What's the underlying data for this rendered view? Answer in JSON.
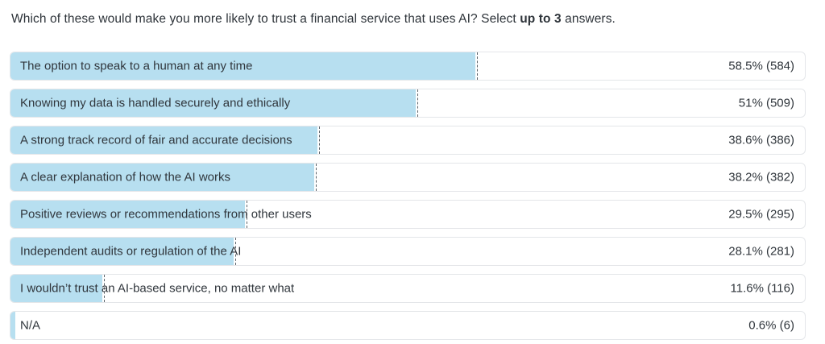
{
  "title": {
    "prefix": "Which of these would make you more likely to trust a financial service that uses AI? Select ",
    "bold_part": "up to 3",
    "suffix": " answers."
  },
  "colors": {
    "bar_fill": "#b7dff0",
    "row_border": "#e4e6e9",
    "dash_line": "#5c636a",
    "text": "#30363c"
  },
  "answers": [
    {
      "label": "The option to speak to a human at any time",
      "pct": 58.5,
      "count": 584,
      "value_label": "58.5% (584)"
    },
    {
      "label": "Knowing my data is handled securely and ethically",
      "pct": 51,
      "count": 509,
      "value_label": "51% (509)"
    },
    {
      "label": "A strong track record of fair and accurate decisions",
      "pct": 38.6,
      "count": 386,
      "value_label": "38.6% (386)"
    },
    {
      "label": "A clear explanation of how the AI works",
      "pct": 38.2,
      "count": 382,
      "value_label": "38.2% (382)"
    },
    {
      "label": "Positive reviews or recommendations from other users",
      "pct": 29.5,
      "count": 295,
      "value_label": "29.5% (295)"
    },
    {
      "label": "Independent audits or regulation of the AI",
      "pct": 28.1,
      "count": 281,
      "value_label": "28.1% (281)"
    },
    {
      "label": "I wouldn’t trust an AI-based service, no matter what",
      "pct": 11.6,
      "count": 116,
      "value_label": "11.6% (116)"
    },
    {
      "label": "N/A",
      "pct": 0.6,
      "count": 6,
      "value_label": "0.6% (6)"
    }
  ],
  "chart_data": {
    "type": "bar",
    "orientation": "horizontal",
    "title": "Which of these would make you more likely to trust a financial service that uses AI? Select up to 3 answers.",
    "categories": [
      "The option to speak to a human at any time",
      "Knowing my data is handled securely and ethically",
      "A strong track record of fair and accurate decisions",
      "A clear explanation of how the AI works",
      "Positive reviews or recommendations from other users",
      "Independent audits or regulation of the AI",
      "I wouldn’t trust an AI-based service, no matter what",
      "N/A"
    ],
    "series": [
      {
        "name": "percent_of_respondents",
        "values": [
          58.5,
          51,
          38.6,
          38.2,
          29.5,
          28.1,
          11.6,
          0.6
        ]
      },
      {
        "name": "respondent_count",
        "values": [
          584,
          509,
          386,
          382,
          295,
          281,
          116,
          6
        ]
      }
    ],
    "value_unit": "%",
    "xlim": [
      0,
      100
    ],
    "grid": false,
    "legend": false,
    "data_labels": "right-aligned, format: pct% (count)"
  }
}
